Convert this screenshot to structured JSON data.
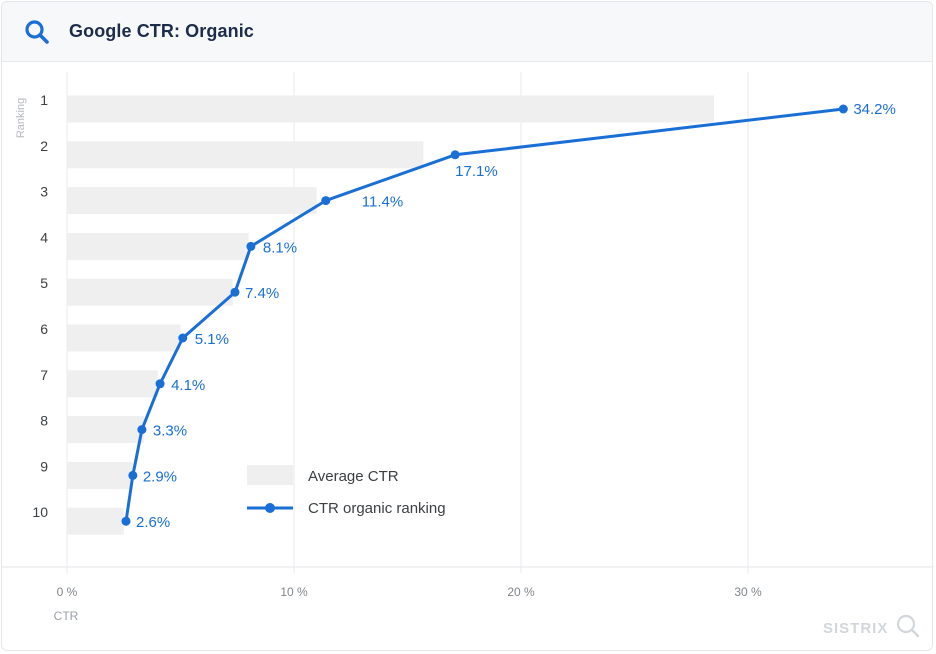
{
  "header": {
    "title": "Google CTR: Organic",
    "icon": "search-icon"
  },
  "colors": {
    "accent": "#1a6fd6",
    "bar": "#efefef",
    "header_bg": "#f7f8fa",
    "title": "#1d2c4a"
  },
  "chart_data": {
    "type": "bar",
    "title": "Google CTR: Organic",
    "ylabel": "Ranking",
    "xlabel": "CTR",
    "categories": [
      "1",
      "2",
      "3",
      "4",
      "5",
      "6",
      "7",
      "8",
      "9",
      "10"
    ],
    "xlim": [
      0,
      38
    ],
    "xticks": [
      0,
      10,
      20,
      30
    ],
    "xtick_labels": [
      "0 %",
      "10 %",
      "20 %",
      "30 %"
    ],
    "grid": "vertical",
    "legend_position": "bottom-center",
    "series": [
      {
        "name": "Average CTR",
        "kind": "bar",
        "values": [
          28.5,
          15.7,
          11.0,
          8.0,
          7.3,
          5.0,
          4.0,
          3.4,
          2.9,
          2.5
        ]
      },
      {
        "name": "CTR organic ranking",
        "kind": "line",
        "values": [
          34.2,
          17.1,
          11.4,
          8.1,
          7.4,
          5.1,
          4.1,
          3.3,
          2.9,
          2.6
        ],
        "labels": [
          "34.2%",
          "17.1%",
          "11.4%",
          "8.1%",
          "7.4%",
          "5.1%",
          "4.1%",
          "3.3%",
          "2.9%",
          "2.6%"
        ]
      }
    ]
  },
  "watermark": "SISTRIX"
}
